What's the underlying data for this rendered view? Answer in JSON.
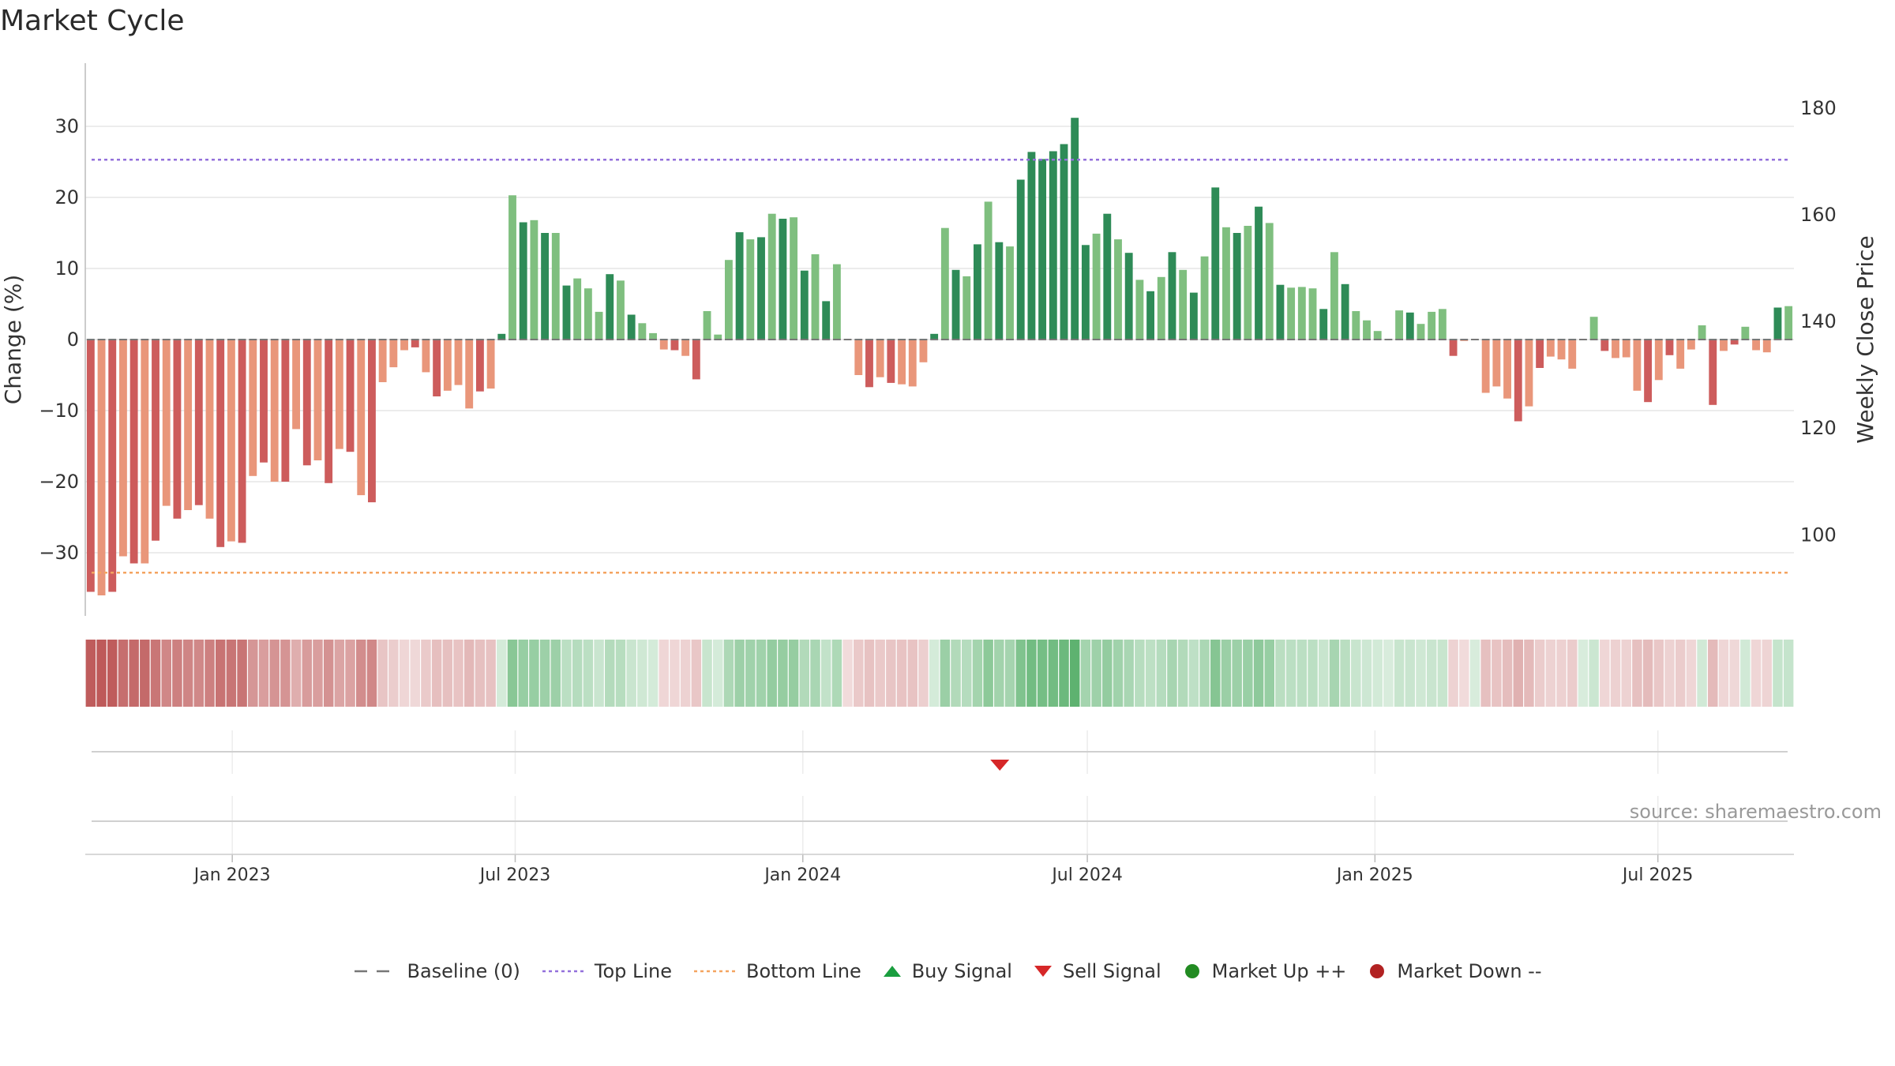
{
  "chart_data": {
    "type": "bar",
    "title": "Market Cycle",
    "ylabel": "Change (%)",
    "y2label": "Weekly Close Price",
    "ylim": [
      -39,
      39
    ],
    "y_ticks": [
      30,
      20,
      10,
      0,
      -10,
      -20,
      -30
    ],
    "y_tick_labels": [
      "30",
      "20",
      "10",
      "0",
      "−10",
      "−20",
      "−30"
    ],
    "y2lim": [
      84.8,
      188.4
    ],
    "y2_ticks": [
      180,
      160,
      140,
      120,
      100
    ],
    "top_line": 25.3,
    "bottom_line": -32.8,
    "x_start": "2022-10-03",
    "x_end": "2025-09-22",
    "x_ticks": [
      "2023-01-01",
      "2023-07-01",
      "2024-01-01",
      "2024-07-01",
      "2025-01-01",
      "2025-07-01"
    ],
    "x_tick_labels": [
      "Jan 2023",
      "Jul 2023",
      "Jan 2024",
      "Jul 2024",
      "Jan 2025",
      "Jul 2025"
    ],
    "grid": true,
    "legend_position": "bottom-center",
    "series": [
      {
        "values": [
          -35.5,
          -36,
          -35.5,
          -30.5,
          -31.5,
          -31.5,
          -28.3,
          -23.4,
          -25.2,
          -24,
          -23.3,
          -25.2,
          -29.2,
          -28.4,
          -28.6,
          -19.2,
          -17.3,
          -20,
          -20,
          -12.6,
          -17.7,
          -17,
          -20.2,
          -15.4,
          -15.8,
          -21.9,
          -22.9,
          -6,
          -3.9,
          -1.5,
          -1.1,
          -4.6,
          -8,
          -7.2,
          -6.4,
          -9.7,
          -7.3,
          -6.9,
          0.8,
          20.3,
          16.5,
          16.8,
          15,
          15,
          7.6,
          8.6,
          7.2,
          3.9,
          9.2,
          8.3,
          3.5,
          2.3,
          0.9,
          -1.4,
          -1.5,
          -2.3,
          -5.6,
          4,
          0.7,
          11.2,
          15.1,
          14.1,
          14.4,
          17.7,
          17,
          17.2,
          9.7,
          12,
          5.4,
          10.6,
          -0.1,
          -5,
          -6.7,
          -5.3,
          -6.1,
          -6.3,
          -6.6,
          -3.2,
          0.8,
          15.7,
          9.8,
          8.9,
          13.4,
          19.4,
          13.7,
          13.1,
          22.5,
          26.4,
          25.4,
          26.5,
          27.5,
          31.2,
          13.3,
          14.9,
          17.7,
          14.1,
          12.2,
          8.4,
          6.8,
          8.8,
          12.3,
          9.8,
          6.6,
          11.7,
          21.4,
          15.8,
          15,
          16,
          18.7,
          16.4,
          7.7,
          7.3,
          7.4,
          7.2,
          4.3,
          12.3,
          7.8,
          4,
          2.7,
          1.2,
          0,
          4.1,
          3.8,
          2.2,
          3.9,
          4.3,
          -2.3,
          -0.2,
          0,
          -7.5,
          -6.6,
          -8.3,
          -11.5,
          -9.4,
          -4,
          -2.4,
          -2.8,
          -4.1,
          0,
          3.2,
          -1.6,
          -2.6,
          -2.5,
          -7.2,
          -8.8,
          -5.7,
          -2.2,
          -4.1,
          -1.4,
          2,
          -9.2,
          -1.6,
          -0.7,
          1.8,
          -1.5,
          -1.8,
          4.5,
          4.7
        ]
      },
      {
        "name": "Weekly Close Price",
        "values": [
          138,
          138,
          138,
          138,
          138,
          138,
          138,
          138,
          138,
          138,
          138,
          138,
          138,
          138,
          138,
          138,
          138,
          138,
          138,
          138,
          138,
          138,
          138,
          138,
          138,
          138,
          138,
          138,
          138,
          138,
          138,
          138,
          138,
          138,
          138,
          138,
          138,
          138,
          138,
          138,
          138,
          138,
          138,
          138,
          138,
          138,
          138,
          138,
          138,
          138,
          138,
          138,
          138,
          138,
          138,
          138,
          138,
          138,
          138,
          138,
          138,
          138,
          138,
          138,
          138,
          138,
          138,
          138,
          138,
          138,
          138,
          138,
          138,
          138,
          138,
          138,
          138,
          138,
          138,
          138,
          138,
          138,
          138,
          138,
          138,
          138,
          138,
          138,
          138,
          138,
          138,
          138,
          138,
          138,
          138,
          138,
          138,
          138,
          138,
          138,
          138,
          138,
          138,
          138,
          138,
          138,
          138,
          138,
          138,
          138,
          138,
          138,
          138,
          138,
          138,
          138,
          138,
          138,
          138,
          138,
          138,
          138,
          138,
          138,
          138,
          138,
          138,
          138,
          138,
          138,
          138,
          138,
          138,
          138,
          138,
          138,
          138,
          138,
          138,
          138,
          138,
          138,
          138,
          138,
          138,
          138,
          138,
          138,
          138,
          138,
          138,
          138,
          138,
          138,
          138,
          138,
          138,
          138,
          138,
          138
        ]
      }
    ],
    "signals": [
      {
        "type": "Sell Signal",
        "date": "2024-05-06"
      }
    ],
    "annotation": "source: sharemaestro.com",
    "colors": {
      "up_strong": "#2e8b57",
      "up_light": "#7fbf7f",
      "down_strong": "#cd5c5c",
      "down_light": "#e9967a",
      "top_line": "#9370db",
      "bottom_line": "#f4a460",
      "buy": "#1a9e3f",
      "sell": "#d62728",
      "market_up": "#228b22",
      "market_down": "#b22222",
      "baseline": "#777777"
    }
  },
  "legend": {
    "items": [
      {
        "label": "Baseline (0)",
        "symbol": "dash"
      },
      {
        "label": "Top Line",
        "symbol": "dot-purple"
      },
      {
        "label": "Bottom Line",
        "symbol": "dot-orange"
      },
      {
        "label": "Buy Signal",
        "symbol": "triangle-up"
      },
      {
        "label": "Sell Signal",
        "symbol": "triangle-down"
      },
      {
        "label": "Market Up ++",
        "symbol": "circle-green"
      },
      {
        "label": "Market Down --",
        "symbol": "circle-red"
      }
    ]
  }
}
